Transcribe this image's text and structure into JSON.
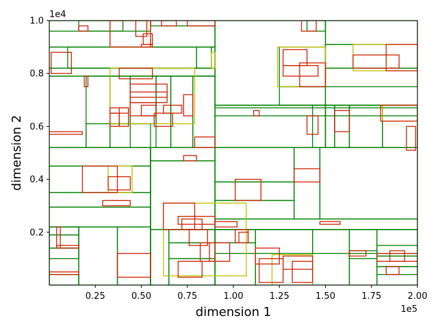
{
  "chart_data": {
    "type": "diagram-rectangles",
    "xlabel": "dimension 1",
    "ylabel": "dimension 2",
    "x_offset_label": "1e5",
    "y_offset_label": "1e4",
    "xlim": [
      0,
      200000
    ],
    "ylim": [
      0,
      10000
    ],
    "x_ticks": [
      {
        "value": 25000,
        "label": "0.25"
      },
      {
        "value": 50000,
        "label": "0.50"
      },
      {
        "value": 75000,
        "label": "0.75"
      },
      {
        "value": 100000,
        "label": "1.00"
      },
      {
        "value": 125000,
        "label": "1.25"
      },
      {
        "value": 150000,
        "label": "1.50"
      },
      {
        "value": 175000,
        "label": "1.75"
      },
      {
        "value": 200000,
        "label": "2.00"
      }
    ],
    "y_ticks": [
      {
        "value": 2000,
        "label": "0.2"
      },
      {
        "value": 4000,
        "label": "0.4"
      },
      {
        "value": 6000,
        "label": "0.6"
      },
      {
        "value": 8000,
        "label": "0.8"
      },
      {
        "value": 10000,
        "label": "1.0"
      }
    ],
    "colors": {
      "green": "#008000",
      "yellow": "#bfbf00",
      "red": "#ff0000",
      "orange": "#d95f02"
    },
    "rect_groups": [
      {
        "name": "partition",
        "color": "#008000",
        "rects": [
          [
            0,
            9000,
            90000,
            10000
          ],
          [
            0,
            9600,
            55000,
            10000
          ],
          [
            55000,
            9800,
            90000,
            10000
          ],
          [
            0,
            8200,
            90000,
            9000
          ],
          [
            0,
            7900,
            90000,
            8200
          ],
          [
            0,
            5200,
            90000,
            7900
          ],
          [
            0,
            0,
            55000,
            5200
          ],
          [
            55000,
            0,
            90000,
            5200
          ],
          [
            90000,
            6800,
            200000,
            10000
          ],
          [
            90000,
            6800,
            150000,
            10000
          ],
          [
            150000,
            8200,
            200000,
            9100
          ],
          [
            150000,
            5200,
            200000,
            6800
          ],
          [
            90000,
            5200,
            200000,
            6800
          ],
          [
            90000,
            0,
            200000,
            5200
          ],
          [
            0,
            4500,
            55000,
            5200
          ],
          [
            0,
            3500,
            55000,
            4500
          ],
          [
            0,
            2950,
            55000,
            3500
          ],
          [
            0,
            2200,
            55000,
            2950
          ],
          [
            0,
            0,
            16000,
            2200
          ],
          [
            16000,
            0,
            37000,
            2200
          ],
          [
            37000,
            0,
            55000,
            2200
          ],
          [
            55000,
            4700,
            90000,
            5200
          ],
          [
            55000,
            2100,
            90000,
            4700
          ],
          [
            55000,
            0,
            65000,
            2100
          ],
          [
            65000,
            0,
            90000,
            2100
          ],
          [
            90000,
            3900,
            133000,
            5200
          ],
          [
            90000,
            3200,
            133000,
            3900
          ],
          [
            90000,
            2500,
            133000,
            3200
          ],
          [
            133000,
            2500,
            147000,
            5200
          ],
          [
            147000,
            2500,
            200000,
            5200
          ],
          [
            90000,
            2100,
            200000,
            2500
          ],
          [
            90000,
            1600,
            112000,
            2100
          ],
          [
            112000,
            0,
            143000,
            2100
          ],
          [
            143000,
            0,
            163000,
            2100
          ],
          [
            163000,
            0,
            178000,
            2100
          ],
          [
            178000,
            0,
            200000,
            2100
          ],
          [
            20000,
            5200,
            33000,
            7900
          ],
          [
            33000,
            6100,
            44000,
            7900
          ],
          [
            44000,
            6100,
            58000,
            7900
          ],
          [
            58000,
            5200,
            66000,
            7900
          ],
          [
            66000,
            5200,
            78000,
            7900
          ],
          [
            78000,
            5200,
            90000,
            7900
          ],
          [
            10000,
            8200,
            80000,
            9000
          ],
          [
            80000,
            8200,
            88000,
            9000
          ],
          [
            88000,
            8200,
            90000,
            9000
          ],
          [
            90000,
            6400,
            200000,
            6700
          ],
          [
            143000,
            5200,
            150000,
            6800
          ],
          [
            150000,
            5200,
            155000,
            6800
          ],
          [
            155000,
            5200,
            163000,
            6800
          ],
          [
            163000,
            5200,
            181000,
            6800
          ],
          [
            181000,
            5200,
            200000,
            6800
          ],
          [
            125000,
            7500,
            150000,
            9000
          ],
          [
            125000,
            6800,
            150000,
            7500
          ],
          [
            150000,
            9100,
            200000,
            10000
          ],
          [
            140000,
            9600,
            150000,
            10000
          ],
          [
            150000,
            7500,
            200000,
            8200
          ],
          [
            0,
            1900,
            16000,
            2200
          ],
          [
            0,
            1400,
            16000,
            1900
          ],
          [
            0,
            1000,
            16000,
            1400
          ],
          [
            0,
            0,
            16000,
            400
          ],
          [
            178000,
            1100,
            200000,
            1500
          ],
          [
            178000,
            700,
            200000,
            1100
          ],
          [
            178000,
            400,
            200000,
            700
          ],
          [
            65000,
            1600,
            90000,
            2100
          ],
          [
            65000,
            1000,
            90000,
            1600
          ],
          [
            65000,
            0,
            90000,
            1000
          ],
          [
            16000,
            9600,
            40000,
            10000
          ],
          [
            20000,
            5200,
            55000,
            6100
          ],
          [
            33000,
            5200,
            44000,
            6100
          ],
          [
            90000,
            0,
            112000,
            1600
          ],
          [
            163000,
            1000,
            178000,
            1300
          ],
          [
            90000,
            1200,
            200000,
            2100
          ]
        ]
      },
      {
        "name": "highlight",
        "color": "#bfbf00",
        "rects": [
          [
            33000,
            6100,
            79000,
            8200
          ],
          [
            33000,
            9000,
            55000,
            10000
          ],
          [
            62000,
            350,
            107000,
            3100
          ],
          [
            121000,
            0,
            143000,
            1150
          ],
          [
            124000,
            7500,
            150000,
            9000
          ],
          [
            165000,
            8100,
            200000,
            9100
          ],
          [
            181000,
            6200,
            200000,
            6800
          ],
          [
            32000,
            3500,
            45000,
            4500
          ],
          [
            88000,
            8200,
            90000,
            8800
          ]
        ]
      },
      {
        "name": "boxes",
        "color": "#cc2200",
        "rects": [
          [
            1000,
            8000,
            12000,
            8800
          ],
          [
            19000,
            7500,
            21000,
            7900
          ],
          [
            38000,
            7800,
            56000,
            8200
          ],
          [
            44000,
            6900,
            64000,
            7600
          ],
          [
            44000,
            7100,
            64000,
            7300
          ],
          [
            44000,
            6400,
            58000,
            6900
          ],
          [
            33000,
            6000,
            38000,
            6500
          ],
          [
            33000,
            6500,
            43000,
            6700
          ],
          [
            38000,
            6000,
            43000,
            6700
          ],
          [
            50000,
            6400,
            58000,
            6800
          ],
          [
            57000,
            6000,
            67000,
            6500
          ],
          [
            62000,
            6500,
            72000,
            6800
          ],
          [
            73000,
            6400,
            78000,
            7200
          ],
          [
            79000,
            5200,
            90000,
            5600
          ],
          [
            33000,
            9000,
            55000,
            10000
          ],
          [
            50000,
            9000,
            56000,
            9100
          ],
          [
            51000,
            9100,
            56000,
            9500
          ],
          [
            47000,
            9400,
            53000,
            10000
          ],
          [
            61000,
            9800,
            69000,
            10000
          ],
          [
            75000,
            9800,
            90000,
            10000
          ],
          [
            16000,
            9600,
            21000,
            9800
          ],
          [
            0,
            5700,
            18000,
            5800
          ],
          [
            127000,
            8300,
            140000,
            8900
          ],
          [
            127000,
            7900,
            146000,
            8300
          ],
          [
            136000,
            7500,
            150000,
            8400
          ],
          [
            137000,
            9600,
            145000,
            10000
          ],
          [
            111000,
            6400,
            114000,
            6600
          ],
          [
            140000,
            5700,
            146000,
            6400
          ],
          [
            155000,
            5800,
            163000,
            6600
          ],
          [
            165000,
            8200,
            190000,
            8700
          ],
          [
            183000,
            8100,
            200000,
            9100
          ],
          [
            180000,
            6200,
            200000,
            6800
          ],
          [
            194000,
            5100,
            199000,
            6000
          ],
          [
            18000,
            3500,
            37000,
            4500
          ],
          [
            32000,
            3600,
            44000,
            4100
          ],
          [
            29000,
            3000,
            44000,
            3200
          ],
          [
            73000,
            4700,
            80000,
            4900
          ],
          [
            101000,
            3200,
            115000,
            4000
          ],
          [
            133000,
            3900,
            147000,
            4400
          ],
          [
            147000,
            2300,
            158000,
            2400
          ],
          [
            62000,
            2100,
            79000,
            3100
          ],
          [
            70000,
            2300,
            90000,
            2600
          ],
          [
            72000,
            2100,
            83000,
            2500
          ],
          [
            90000,
            2200,
            102000,
            2400
          ],
          [
            101000,
            1600,
            108000,
            2100
          ],
          [
            103000,
            1600,
            108000,
            2000
          ],
          [
            76000,
            1500,
            86000,
            2100
          ],
          [
            82000,
            900,
            98000,
            1600
          ],
          [
            87000,
            900,
            90000,
            1600
          ],
          [
            70000,
            300,
            83000,
            900
          ],
          [
            37000,
            300,
            55000,
            1200
          ],
          [
            0,
            400,
            16000,
            500
          ],
          [
            4000,
            1400,
            16000,
            1500
          ],
          [
            4000,
            1400,
            6000,
            2200
          ],
          [
            112000,
            800,
            125000,
            1400
          ],
          [
            114000,
            100,
            127000,
            1000
          ],
          [
            127000,
            600,
            143000,
            1100
          ],
          [
            132000,
            100,
            143000,
            900
          ],
          [
            163000,
            1100,
            172000,
            1300
          ],
          [
            178000,
            900,
            200000,
            1200
          ],
          [
            185000,
            900,
            193000,
            1300
          ],
          [
            183000,
            400,
            190000,
            700
          ]
        ]
      }
    ]
  }
}
